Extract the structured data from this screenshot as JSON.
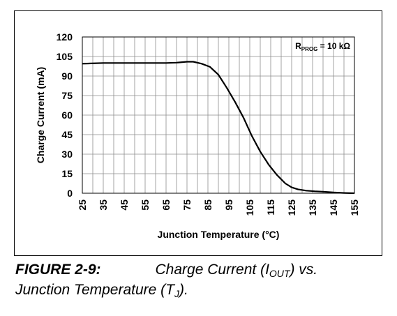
{
  "chart_data": {
    "type": "line",
    "xlabel": "Junction Temperature (°C)",
    "ylabel": "Charge Current (mA)",
    "annotation": {
      "main": "R",
      "sub": "PROG",
      "rest": " = 10 kΩ"
    },
    "xlim": [
      25,
      155
    ],
    "ylim": [
      0,
      120
    ],
    "xticks": [
      25,
      35,
      45,
      55,
      65,
      75,
      85,
      95,
      105,
      115,
      125,
      135,
      145,
      155
    ],
    "yticks": [
      0,
      15,
      30,
      45,
      60,
      75,
      90,
      105,
      120
    ],
    "grid": true,
    "series": [
      {
        "color": "#000000",
        "points": [
          [
            25,
            99.5
          ],
          [
            35,
            100
          ],
          [
            45,
            100
          ],
          [
            55,
            100
          ],
          [
            65,
            100
          ],
          [
            70,
            100.3
          ],
          [
            75,
            101
          ],
          [
            78,
            101
          ],
          [
            82,
            99.5
          ],
          [
            86,
            97
          ],
          [
            90,
            91
          ],
          [
            94,
            81
          ],
          [
            98,
            70
          ],
          [
            102,
            58
          ],
          [
            106,
            44
          ],
          [
            110,
            32
          ],
          [
            114,
            22
          ],
          [
            118,
            14
          ],
          [
            122,
            7.5
          ],
          [
            125,
            4.5
          ],
          [
            128,
            3
          ],
          [
            132,
            2
          ],
          [
            136,
            1.5
          ],
          [
            140,
            1.2
          ],
          [
            145,
            0.6
          ],
          [
            150,
            0.2
          ],
          [
            155,
            0
          ]
        ]
      }
    ]
  },
  "caption": {
    "figure_label": "FIGURE 2-9:",
    "line1_text": "Charge Current (I",
    "line1_sub": "OUT",
    "line1_end": ") vs.",
    "line2_text": "Junction Temperature (T",
    "line2_sub": "J",
    "line2_end": ")."
  }
}
